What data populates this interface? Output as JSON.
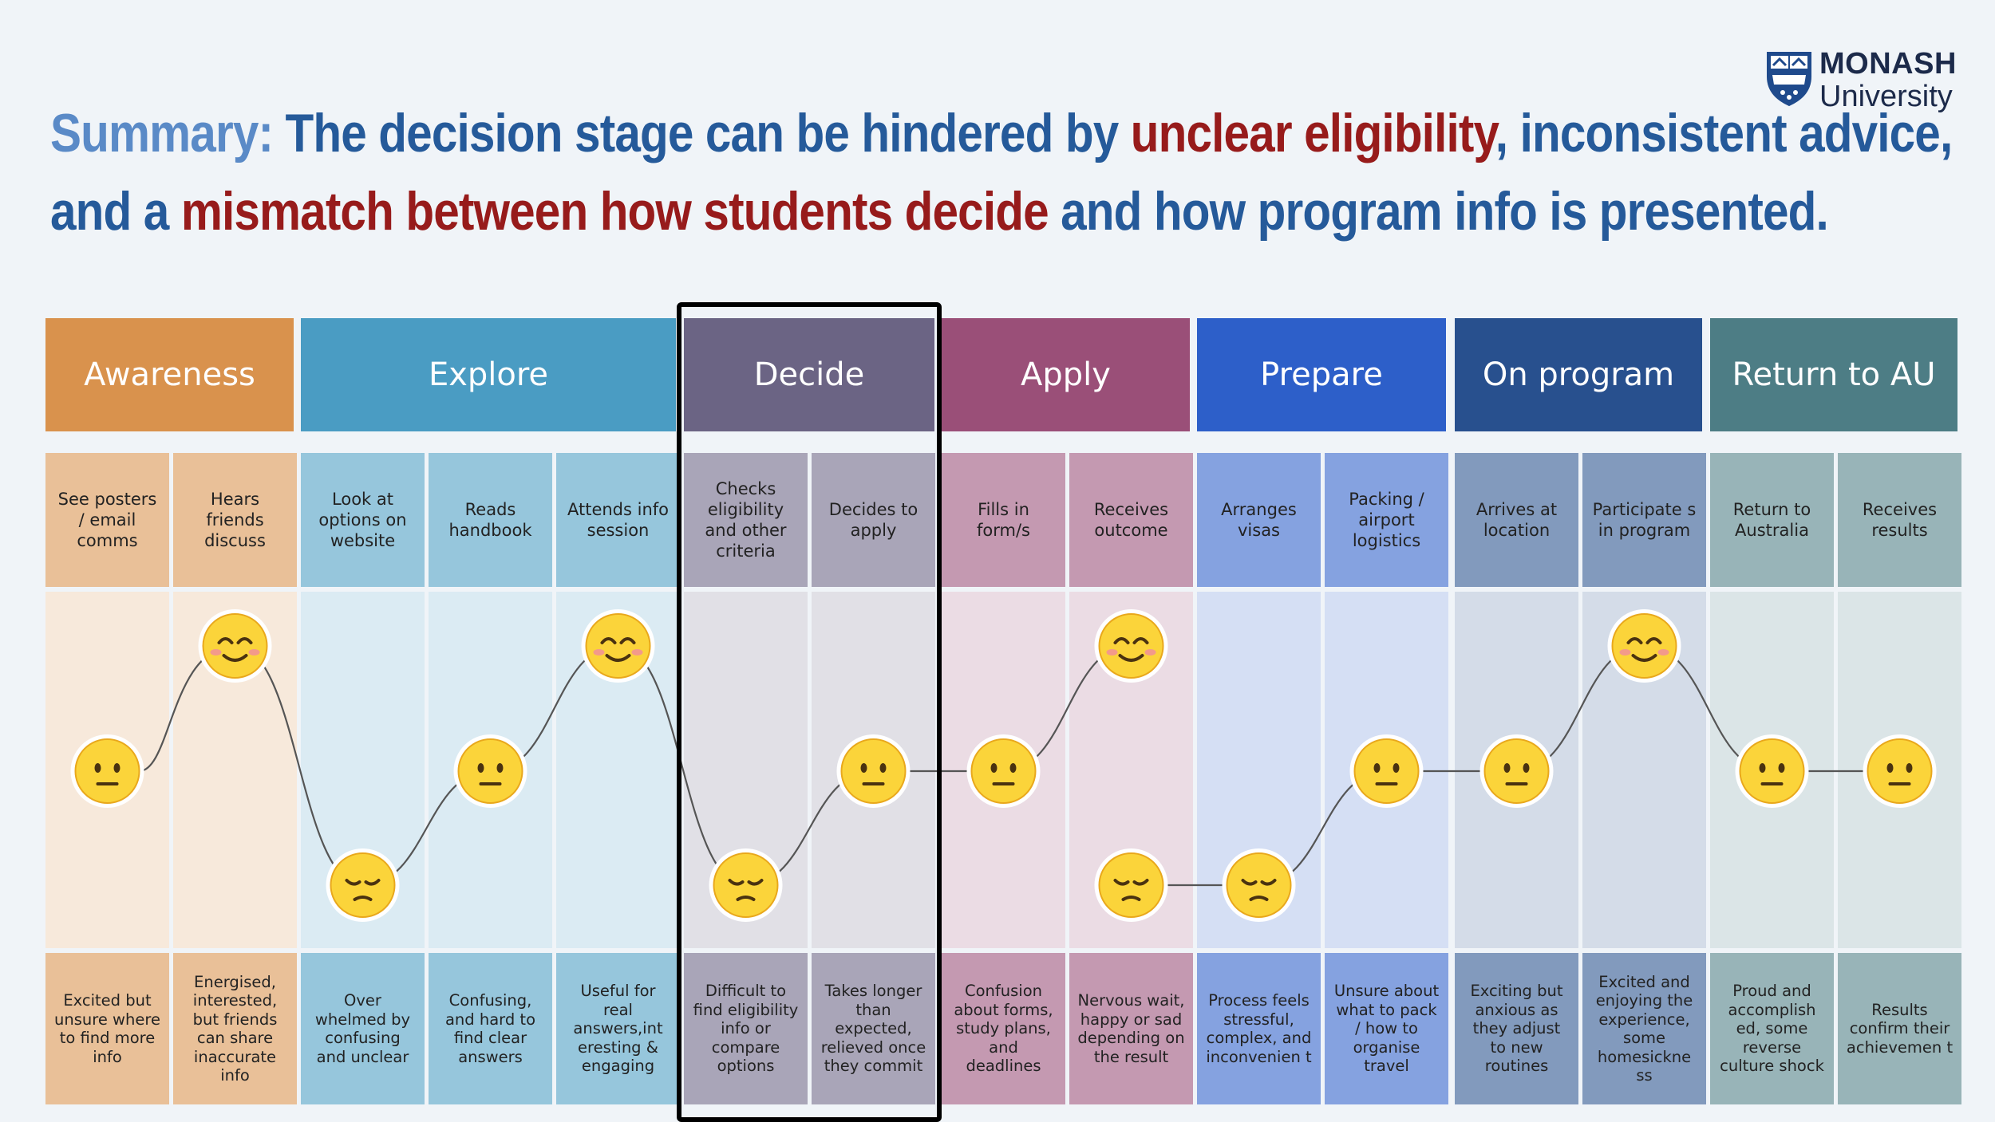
{
  "title": {
    "line1": [
      {
        "text": "Summary: ",
        "tone": "lead"
      },
      {
        "text": "The decision stage can be hindered by ",
        "tone": "blue"
      },
      {
        "text": "unclear eligibility",
        "tone": "red"
      },
      {
        "text": ", inconsistent advice,",
        "tone": "blue"
      }
    ],
    "line2": [
      {
        "text": "and a ",
        "tone": "blue"
      },
      {
        "text": "mismatch between how students decide",
        "tone": "red"
      },
      {
        "text": " and how program info is presented.",
        "tone": "blue"
      }
    ]
  },
  "logo": {
    "name": "MONASH",
    "sub": "University",
    "icon": "monash-crest-icon"
  },
  "stages": [
    {
      "label": "Awareness",
      "color": "#d9924d"
    },
    {
      "label": "Explore",
      "color": "#4a9cc3"
    },
    {
      "label": "Decide",
      "color": "#6b6484"
    },
    {
      "label": "Apply",
      "color": "#9a4f78"
    },
    {
      "label": "Prepare",
      "color": "#2d5fc9"
    },
    {
      "label": "On program",
      "color": "#28508e"
    },
    {
      "label": "Return to AU",
      "color": "#4d7d85"
    }
  ],
  "highlighted_stage": "Decide",
  "steps": [
    {
      "stage": 0,
      "action": "See posters / email comms",
      "emotion": "neutral",
      "feeling": "Excited but unsure where to find more info"
    },
    {
      "stage": 0,
      "action": "Hears friends discuss",
      "emotion": "happy",
      "feeling": "Energised, interested, but friends can share inaccurate info"
    },
    {
      "stage": 1,
      "action": "Look at options on website",
      "emotion": "sad",
      "feeling": "Over whelmed by confusing and unclear"
    },
    {
      "stage": 1,
      "action": "Reads handbook",
      "emotion": "neutral",
      "feeling": "Confusing, and hard to find clear answers"
    },
    {
      "stage": 1,
      "action": "Attends info session",
      "emotion": "happy",
      "feeling": "Useful for real answers,int eresting & engaging"
    },
    {
      "stage": 2,
      "action": "Checks eligibility and other criteria",
      "emotion": "sad",
      "feeling": "Difficult to find eligibility info or compare options"
    },
    {
      "stage": 2,
      "action": "Decides to apply",
      "emotion": "neutral",
      "feeling": "Takes longer than expected, relieved once they commit"
    },
    {
      "stage": 3,
      "action": "Fills in form/s",
      "emotion": "neutral",
      "feeling": "Confusion about forms, study plans, and deadlines"
    },
    {
      "stage": 3,
      "action": "Receives outcome",
      "emotion": "happy / sad",
      "feeling": "Nervous wait, happy or sad depending on the result"
    },
    {
      "stage": 4,
      "action": "Arranges visas",
      "emotion": "sad",
      "feeling": "Process feels stressful, complex, and inconvenien t"
    },
    {
      "stage": 4,
      "action": "Packing / airport logistics",
      "emotion": "neutral",
      "feeling": "Unsure about what to pack / how to organise travel"
    },
    {
      "stage": 5,
      "action": "Arrives at location",
      "emotion": "neutral",
      "feeling": "Exciting but anxious as they adjust to new routines"
    },
    {
      "stage": 5,
      "action": "Participate s in program",
      "emotion": "happy",
      "feeling": "Excited and enjoying the experience, some homesickne ss"
    },
    {
      "stage": 6,
      "action": "Return to Australia",
      "emotion": "neutral",
      "feeling": "Proud and accomplish ed, some reverse culture shock"
    },
    {
      "stage": 6,
      "action": "Receives results",
      "emotion": "neutral",
      "feeling": "Results confirm their achievemen t"
    }
  ],
  "emotion_points": [
    {
      "step": 0,
      "emotion": "neutral"
    },
    {
      "step": 1,
      "emotion": "happy"
    },
    {
      "step": 2,
      "emotion": "sad"
    },
    {
      "step": 3,
      "emotion": "neutral"
    },
    {
      "step": 4,
      "emotion": "happy"
    },
    {
      "step": 5,
      "emotion": "sad"
    },
    {
      "step": 6,
      "emotion": "neutral"
    },
    {
      "step": 7,
      "emotion": "neutral"
    },
    {
      "step": 8,
      "emotion": "happy"
    },
    {
      "step": 8,
      "emotion": "sad"
    },
    {
      "step": 9,
      "emotion": "sad"
    },
    {
      "step": 10,
      "emotion": "neutral"
    },
    {
      "step": 11,
      "emotion": "neutral"
    },
    {
      "step": 12,
      "emotion": "happy"
    },
    {
      "step": 13,
      "emotion": "neutral"
    },
    {
      "step": 14,
      "emotion": "neutral"
    }
  ]
}
